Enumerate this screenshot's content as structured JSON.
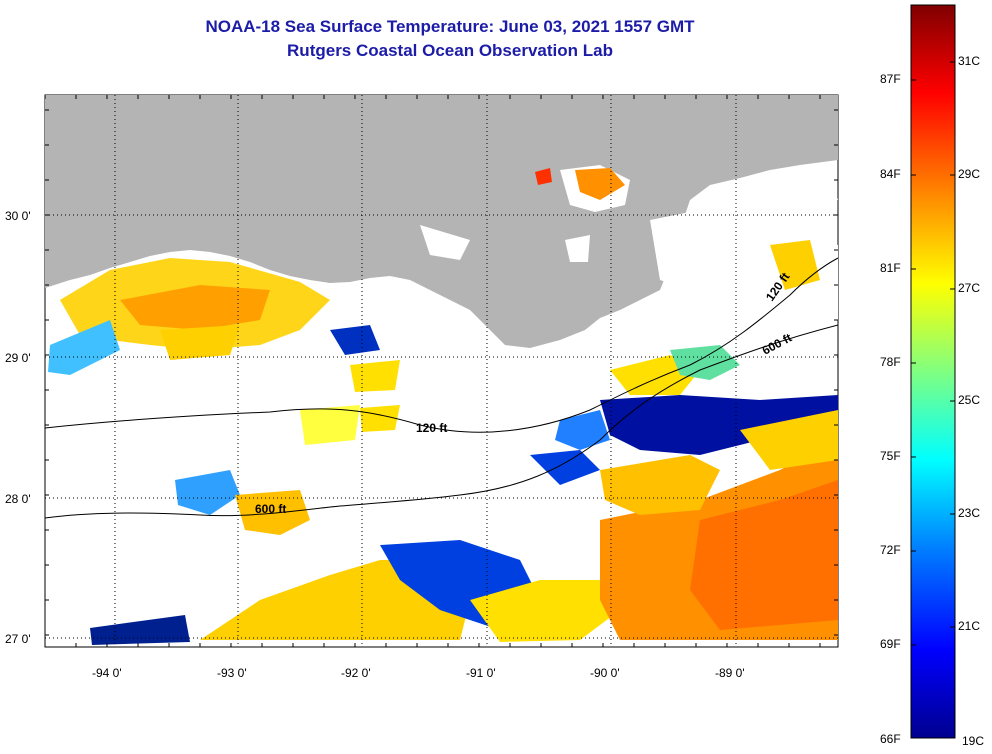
{
  "header": {
    "title_line1": "NOAA-18 Sea Surface Temperature:  June 03, 2021 1557 GMT",
    "title_line2": "Rutgers Coastal Ocean Observation Lab"
  },
  "map": {
    "lon_labels": [
      "-94 0'",
      "-93 0'",
      "-92 0'",
      "-91 0'",
      "-90 0'",
      "-89 0'"
    ],
    "lat_labels": [
      "30 0'",
      "29 0'",
      "28 0'",
      "27 0'"
    ],
    "isobaths": {
      "label_120_west": "120 ft",
      "label_600_west": "600 ft",
      "label_120_east": "120 ft",
      "label_600_east": "600 ft"
    },
    "colors": {
      "land": "#b4b4b4",
      "cloud": "#ffffff",
      "grid": "#000000"
    }
  },
  "colorbar": {
    "fahrenheit_labels": [
      "87F",
      "84F",
      "81F",
      "78F",
      "75F",
      "72F",
      "69F",
      "66F"
    ],
    "celsius_labels": [
      "31C",
      "29C",
      "27C",
      "25C",
      "23C",
      "21C",
      "19C"
    ],
    "colors": [
      "#00008f",
      "#0000ff",
      "#0080ff",
      "#00ffff",
      "#80ff80",
      "#ffff00",
      "#ff8000",
      "#ff0000",
      "#800000"
    ]
  }
}
